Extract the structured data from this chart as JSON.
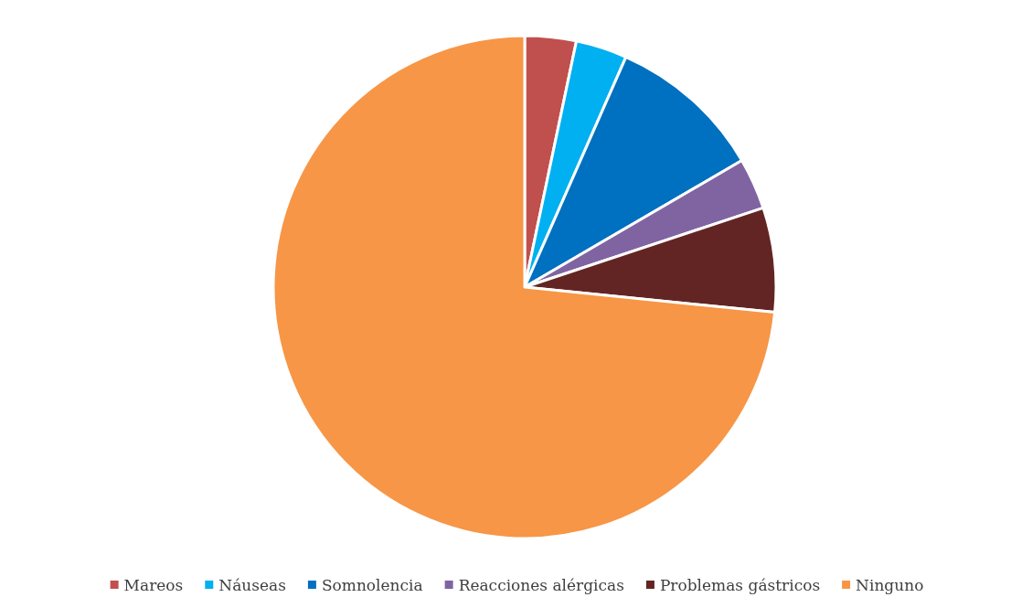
{
  "chart_data": {
    "type": "pie",
    "categories": [
      "Mareos",
      "Náuseas",
      "Somnolencia",
      "Reacciones alérgicas",
      "Problemas gástricos",
      "Ninguno"
    ],
    "values": [
      3.3,
      3.3,
      10,
      3.3,
      6.7,
      73.4
    ],
    "colors": [
      "#c0504d",
      "#00b0f0",
      "#0070c0",
      "#8064a2",
      "#632523",
      "#f79646"
    ],
    "legend": "bottom"
  }
}
